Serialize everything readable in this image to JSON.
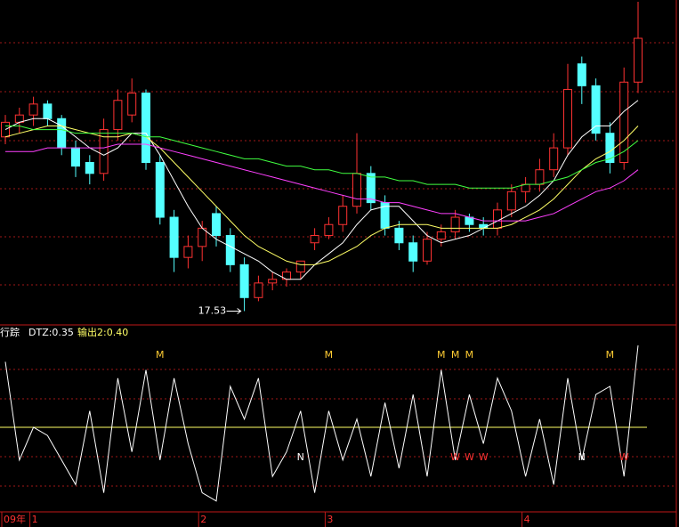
{
  "chart_data": [
    {
      "type": "candlestick",
      "annotation": "17.53",
      "annotation_index": 17,
      "open": [
        22.3,
        22.7,
        22.9,
        23.2,
        22.8,
        22.0,
        21.6,
        21.3,
        22.5,
        22.9,
        23.5,
        21.6,
        20.1,
        19.0,
        19.3,
        20.2,
        19.6,
        18.8,
        17.9,
        18.3,
        18.4,
        18.6,
        19.4,
        19.6,
        19.9,
        20.4,
        21.3,
        20.5,
        19.8,
        19.4,
        18.9,
        19.5,
        19.7,
        20.1,
        19.9,
        19.8,
        20.3,
        20.8,
        21.0,
        21.4,
        22.0,
        24.3,
        23.7,
        22.4,
        21.6,
        23.8
      ],
      "high": [
        22.9,
        23.1,
        23.4,
        23.3,
        22.9,
        22.2,
        21.8,
        22.8,
        23.6,
        23.9,
        23.6,
        21.8,
        20.3,
        19.6,
        20.0,
        20.4,
        19.8,
        19.0,
        18.5,
        18.6,
        18.7,
        18.9,
        19.8,
        20.1,
        20.7,
        22.4,
        21.5,
        20.7,
        20.0,
        19.6,
        19.7,
        19.9,
        20.3,
        20.2,
        20.1,
        20.5,
        21.0,
        21.2,
        21.7,
        22.4,
        24.3,
        24.5,
        23.9,
        22.7,
        24.2,
        26.0
      ],
      "low": [
        22.1,
        22.4,
        22.6,
        22.6,
        21.8,
        21.2,
        21.0,
        21.1,
        22.2,
        22.7,
        21.4,
        19.9,
        18.6,
        18.7,
        18.9,
        19.3,
        18.6,
        17.53,
        17.8,
        18.1,
        18.2,
        18.4,
        19.2,
        19.5,
        19.7,
        20.2,
        20.3,
        19.6,
        19.2,
        18.6,
        18.8,
        19.3,
        19.5,
        19.7,
        19.6,
        19.6,
        20.1,
        20.5,
        20.8,
        21.2,
        21.8,
        23.2,
        22.2,
        21.3,
        21.4,
        23.5
      ],
      "close": [
        22.7,
        22.9,
        23.2,
        22.8,
        22.0,
        21.5,
        21.3,
        22.5,
        23.3,
        23.5,
        21.6,
        20.1,
        19.0,
        19.3,
        19.8,
        19.6,
        18.8,
        17.9,
        18.3,
        18.4,
        18.6,
        18.9,
        19.6,
        19.9,
        20.4,
        21.3,
        20.5,
        19.8,
        19.4,
        18.9,
        19.5,
        19.7,
        20.1,
        19.9,
        19.8,
        20.3,
        20.8,
        21.0,
        21.4,
        22.0,
        23.6,
        23.7,
        22.4,
        21.6,
        23.8,
        25.0
      ],
      "up_color": "#ff3232",
      "down_color": "#54ffff",
      "series": [
        {
          "color": "#ffffff",
          "values": [
            22.5,
            22.7,
            22.8,
            22.8,
            22.6,
            22.3,
            22.0,
            21.8,
            22.0,
            22.4,
            22.4,
            21.8,
            21.1,
            20.4,
            19.8,
            19.5,
            19.3,
            19.1,
            18.9,
            18.6,
            18.4,
            18.4,
            18.8,
            19.1,
            19.4,
            19.9,
            20.3,
            20.4,
            20.4,
            20.0,
            19.6,
            19.4,
            19.5,
            19.6,
            19.8,
            20.0,
            20.2,
            20.4,
            20.7,
            21.1,
            21.8,
            22.3,
            22.6,
            22.6,
            23.0,
            23.3
          ]
        },
        {
          "color": "#ffff66",
          "values": [
            22.3,
            22.4,
            22.5,
            22.6,
            22.6,
            22.5,
            22.4,
            22.3,
            22.3,
            22.4,
            22.3,
            22.0,
            21.6,
            21.2,
            20.8,
            20.4,
            20.0,
            19.6,
            19.3,
            19.1,
            18.9,
            18.8,
            18.8,
            18.9,
            19.1,
            19.3,
            19.6,
            19.8,
            19.9,
            19.9,
            19.9,
            19.8,
            19.8,
            19.8,
            19.8,
            19.8,
            19.9,
            20.1,
            20.3,
            20.6,
            21.0,
            21.4,
            21.7,
            21.9,
            22.2,
            22.6
          ]
        },
        {
          "color": "#ff40ff",
          "values": [
            21.9,
            21.9,
            21.9,
            22.0,
            22.0,
            22.0,
            22.0,
            22.0,
            22.1,
            22.1,
            22.1,
            22.0,
            21.9,
            21.8,
            21.7,
            21.6,
            21.5,
            21.4,
            21.3,
            21.2,
            21.1,
            21.0,
            20.9,
            20.8,
            20.7,
            20.6,
            20.6,
            20.5,
            20.5,
            20.4,
            20.3,
            20.2,
            20.2,
            20.1,
            20.0,
            20.0,
            20.0,
            20.0,
            20.1,
            20.2,
            20.4,
            20.6,
            20.8,
            20.9,
            21.1,
            21.4
          ]
        },
        {
          "color": "#40ff40",
          "values": [
            22.6,
            22.6,
            22.5,
            22.5,
            22.5,
            22.4,
            22.4,
            22.4,
            22.4,
            22.4,
            22.3,
            22.3,
            22.2,
            22.1,
            22.0,
            21.9,
            21.8,
            21.7,
            21.7,
            21.6,
            21.5,
            21.5,
            21.4,
            21.4,
            21.3,
            21.3,
            21.2,
            21.2,
            21.1,
            21.1,
            21.0,
            21.0,
            21.0,
            20.9,
            20.9,
            20.9,
            20.9,
            21.0,
            21.0,
            21.1,
            21.2,
            21.4,
            21.6,
            21.7,
            21.9,
            22.2
          ]
        }
      ],
      "ylim": [
        17.2,
        26.0
      ]
    },
    {
      "type": "oscillator",
      "indicator_name": "行踪",
      "legend": [
        {
          "label": "DTZ:0.35",
          "color": "#ffffff"
        },
        {
          "label": "输出2:0.40",
          "color": "#ffff66"
        }
      ],
      "color": "#ffffff",
      "values": [
        0.9,
        0.3,
        0.5,
        0.45,
        0.3,
        0.15,
        0.6,
        0.1,
        0.8,
        0.35,
        0.85,
        0.3,
        0.8,
        0.4,
        0.1,
        0.05,
        0.75,
        0.55,
        0.8,
        0.2,
        0.35,
        0.6,
        0.1,
        0.6,
        0.3,
        0.55,
        0.2,
        0.65,
        0.25,
        0.7,
        0.2,
        0.85,
        0.3,
        0.7,
        0.4,
        0.8,
        0.6,
        0.2,
        0.55,
        0.15,
        0.8,
        0.3,
        0.7,
        0.75,
        0.2,
        1.0
      ],
      "level": 0.5,
      "level_color": "#ffff66",
      "top_marks": [
        null,
        null,
        null,
        null,
        null,
        null,
        null,
        null,
        null,
        null,
        null,
        "M",
        null,
        null,
        null,
        null,
        null,
        null,
        null,
        null,
        null,
        null,
        null,
        "M",
        null,
        null,
        null,
        null,
        null,
        null,
        null,
        "M",
        "M",
        "M",
        null,
        null,
        null,
        null,
        null,
        null,
        null,
        null,
        null,
        "M",
        null,
        null
      ],
      "bottom_marks": [
        null,
        null,
        null,
        null,
        null,
        null,
        null,
        null,
        null,
        null,
        null,
        null,
        null,
        null,
        null,
        null,
        null,
        null,
        null,
        null,
        null,
        "N",
        null,
        null,
        null,
        null,
        null,
        null,
        null,
        null,
        null,
        null,
        "W",
        "W",
        "W",
        null,
        null,
        null,
        null,
        null,
        null,
        "N",
        null,
        null,
        "W",
        null
      ],
      "x_labels": [
        "09年",
        null,
        "1",
        null,
        null,
        null,
        null,
        null,
        null,
        null,
        null,
        null,
        null,
        null,
        "2",
        null,
        null,
        null,
        null,
        null,
        null,
        null,
        null,
        "3",
        null,
        null,
        null,
        null,
        null,
        null,
        null,
        null,
        null,
        null,
        null,
        null,
        null,
        "4",
        null,
        null,
        null,
        null,
        null,
        null,
        null,
        null
      ],
      "ylim": [
        0,
        1
      ]
    }
  ]
}
